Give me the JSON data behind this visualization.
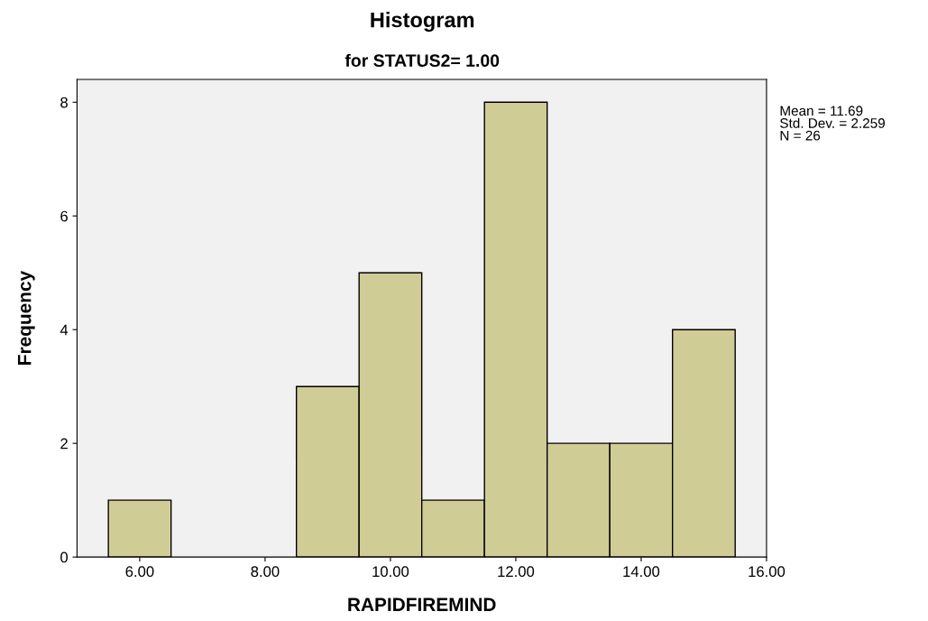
{
  "chart_data": {
    "type": "histogram",
    "title": "Histogram",
    "subtitle": "for STATUS2= 1.00",
    "xlabel": "RAPIDFIREMIND",
    "ylabel": "Frequency",
    "bins": [
      5.5,
      6.5,
      7.5,
      8.5,
      9.5,
      10.5,
      11.5,
      12.5,
      13.5,
      14.5,
      15.5
    ],
    "values": [
      1,
      0,
      0,
      3,
      5,
      1,
      8,
      2,
      2,
      4
    ],
    "color": "#d0cc96",
    "xlim": [
      5,
      16
    ],
    "xticks": [
      {
        "value": 6,
        "label": "6.00"
      },
      {
        "value": 8,
        "label": "8.00"
      },
      {
        "value": 10,
        "label": "10.00"
      },
      {
        "value": 12,
        "label": "12.00"
      },
      {
        "value": 14,
        "label": "14.00"
      },
      {
        "value": 16,
        "label": "16.00"
      }
    ],
    "ylim": [
      0,
      8.4
    ],
    "yticks": [
      0,
      2,
      4,
      6,
      8
    ],
    "grid": false,
    "annotations": [
      "Mean = 11.69\nStd. Dev. = 2.259\nN = 26"
    ]
  }
}
